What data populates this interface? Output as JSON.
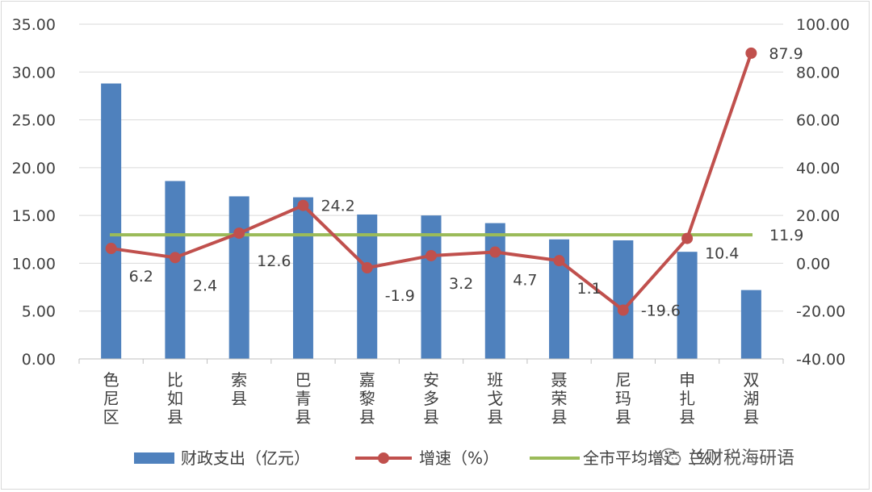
{
  "chart_data": {
    "type": "bar",
    "title": "",
    "categories": [
      "色尼区",
      "比如县",
      "索县",
      "巴青县",
      "嘉黎县",
      "安多县",
      "班戈县",
      "聂荣县",
      "尼玛县",
      "申扎县",
      "双湖县"
    ],
    "series": [
      {
        "name": "财政支出（亿元）",
        "type": "bar",
        "axis": "left",
        "color": "#4f81bd",
        "values": [
          28.8,
          18.6,
          17.0,
          16.9,
          15.1,
          15.0,
          14.2,
          12.5,
          12.4,
          11.2,
          7.2
        ]
      },
      {
        "name": "增速（%）",
        "type": "line",
        "axis": "right",
        "color": "#c0504d",
        "values": [
          6.2,
          2.4,
          12.6,
          24.2,
          -1.9,
          3.2,
          4.7,
          1.1,
          -19.6,
          10.4,
          87.9
        ],
        "labels": [
          "6.2",
          "2.4",
          "12.6",
          "24.2",
          "-1.9",
          "3.2",
          "4.7",
          "1.1",
          "-19.6",
          "10.4",
          "87.9"
        ]
      },
      {
        "name": "全市平均增速（%）",
        "type": "line",
        "axis": "right",
        "color": "#9bbb59",
        "value": 11.9,
        "label": "11.9",
        "label_color": "#ff0000"
      }
    ],
    "y_left": {
      "range": [
        0,
        35
      ],
      "ticks": [
        "0.00",
        "5.00",
        "10.00",
        "15.00",
        "20.00",
        "25.00",
        "30.00",
        "35.00"
      ]
    },
    "y_right": {
      "range": [
        -40,
        100
      ],
      "ticks": [
        "-40.00",
        "-20.00",
        "0.00",
        "20.00",
        "40.00",
        "60.00",
        "80.00",
        "100.00"
      ]
    },
    "grid": true,
    "legend_position": "bottom"
  },
  "watermark": {
    "text": "兰财税海研语",
    "icon": "wechat-icon"
  }
}
